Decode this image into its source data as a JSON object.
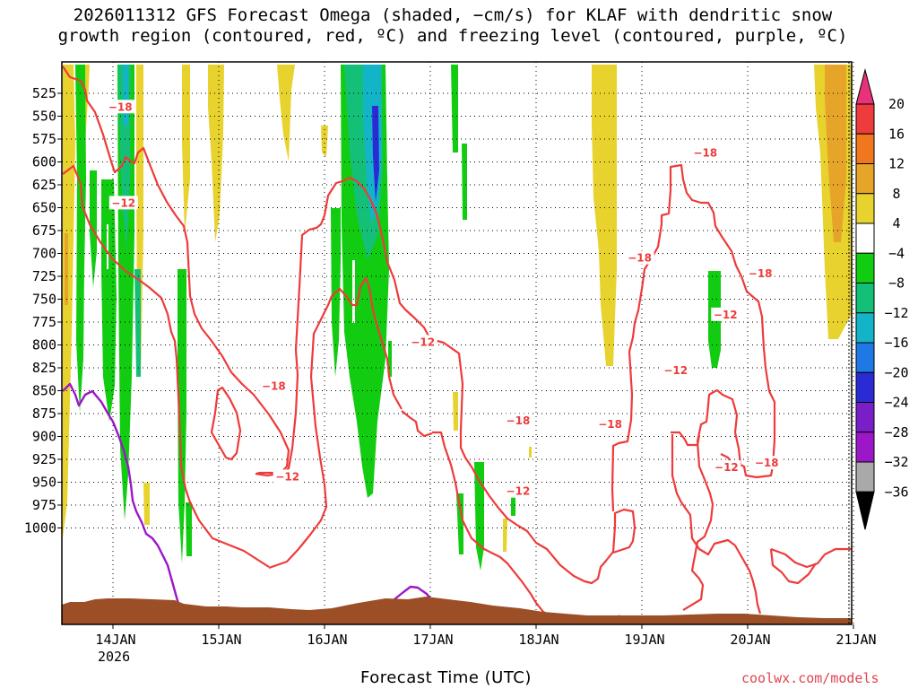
{
  "title": {
    "line1": "2026011312 GFS Forecast Omega (shaded, −cm/s) for KLAF with dendritic snow",
    "line2": "growth region (contoured, red, ºC) and freezing level (contoured, purple, ºC)"
  },
  "xlabel": "Forecast Time (UTC)",
  "credit": "coolwx.com/models",
  "chart_data": {
    "type": "heatmap",
    "x_tick_labels": [
      "14JAN",
      "15JAN",
      "16JAN",
      "17JAN",
      "18JAN",
      "19JAN",
      "20JAN",
      "21JAN"
    ],
    "x_year_label": "2026",
    "y_tick_labels": [
      "525",
      "550",
      "575",
      "600",
      "625",
      "650",
      "675",
      "700",
      "725",
      "750",
      "775",
      "800",
      "825",
      "850",
      "875",
      "900",
      "925",
      "950",
      "975",
      "1000"
    ],
    "y_reversed": true,
    "grid": true,
    "colorbar": {
      "labels": [
        "20",
        "16",
        "12",
        "8",
        "4",
        "−4",
        "−8",
        "−12",
        "−16",
        "−20",
        "−24",
        "−28",
        "−32",
        "−36"
      ],
      "colors": [
        "#e8337a",
        "#ee3b3b",
        "#f0771e",
        "#e6a428",
        "#e8d22e",
        "#ffffff",
        "#11cc11",
        "#14c078",
        "#13b4c8",
        "#1e78e6",
        "#2b2bd6",
        "#7a1fc8",
        "#9b17c9",
        "#a9a9a9",
        "#000000"
      ]
    },
    "contour_labels": [
      {
        "text": "−18",
        "x_day": 14.07,
        "y_hpa": 540
      },
      {
        "text": "−12",
        "x_day": 14.1,
        "y_hpa": 645
      },
      {
        "text": "−18",
        "x_day": 15.52,
        "y_hpa": 845
      },
      {
        "text": "−12",
        "x_day": 15.65,
        "y_hpa": 944
      },
      {
        "text": "−12",
        "x_day": 16.93,
        "y_hpa": 797
      },
      {
        "text": "−18",
        "x_day": 17.83,
        "y_hpa": 883
      },
      {
        "text": "−12",
        "x_day": 17.83,
        "y_hpa": 960
      },
      {
        "text": "−18",
        "x_day": 18.7,
        "y_hpa": 887
      },
      {
        "text": "−18",
        "x_day": 18.98,
        "y_hpa": 705
      },
      {
        "text": "−18",
        "x_day": 19.6,
        "y_hpa": 590
      },
      {
        "text": "−12",
        "x_day": 19.32,
        "y_hpa": 828
      },
      {
        "text": "−12",
        "x_day": 19.79,
        "y_hpa": 767
      },
      {
        "text": "−12",
        "x_day": 19.8,
        "y_hpa": 934
      },
      {
        "text": "−18",
        "x_day": 20.12,
        "y_hpa": 722
      },
      {
        "text": "−18",
        "x_day": 20.18,
        "y_hpa": 929
      }
    ],
    "colors": {
      "dgz_contour": "#ee3b3b",
      "freezing_level": "#9b17c9",
      "terrain": "#9c4f26"
    }
  }
}
